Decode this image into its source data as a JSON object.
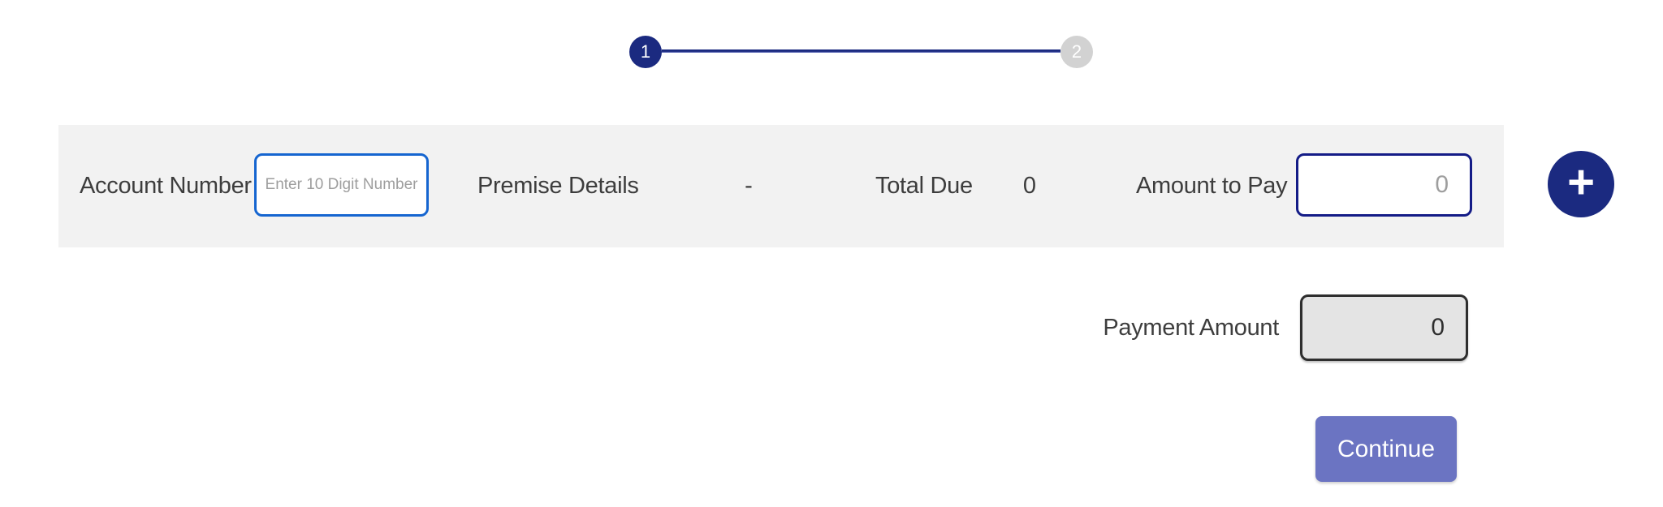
{
  "colors": {
    "navy": "#1b2a80",
    "bright_blue_border": "#1565d0",
    "dark_navy_border": "#141c87",
    "row_background": "#f2f2f2",
    "label_text": "#3d3d3d",
    "muted_text": "#9e9e9e",
    "disabled_input_bg": "#e4e4e4",
    "disabled_input_border": "#2e2e2e",
    "continue_bg": "#6b74c2",
    "step_inactive": "#d2d2d2"
  },
  "stepper": {
    "steps": [
      {
        "label": "1",
        "state": "active"
      },
      {
        "label": "2",
        "state": "inactive"
      }
    ]
  },
  "account_row": {
    "account_number_label": "Account Number",
    "account_number_placeholder": "Enter 10 Digit Number",
    "premise_details_label": "Premise Details",
    "premise_details_value": "-",
    "total_due_label": "Total Due",
    "total_due_value": "0",
    "amount_to_pay_label": "Amount to Pay",
    "amount_to_pay_placeholder": "0"
  },
  "add_row_button": {
    "glyph": "+"
  },
  "payment": {
    "label": "Payment Amount",
    "value": "0"
  },
  "actions": {
    "continue_label": "Continue"
  }
}
